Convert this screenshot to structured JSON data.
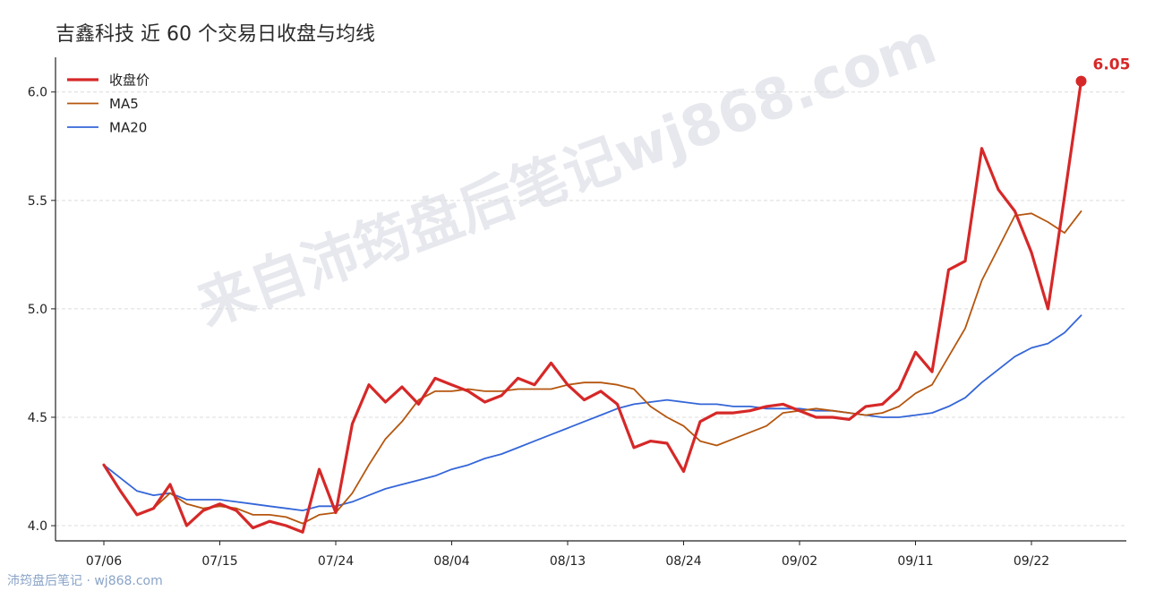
{
  "title": "吉鑫科技 近 60 个交易日收盘与均线",
  "watermark": "来自沛筠盘后笔记wj868.com",
  "footer": "沛筠盘后笔记 · wj868.com",
  "colors": {
    "close": "#d62828",
    "ma5": "#b5560f",
    "ma20": "#3466d8",
    "watermark": "#e6e8ee"
  },
  "chart_data": {
    "type": "line",
    "title": "吉鑫科技 近 60 个交易日收盘与均线",
    "xlabel": "",
    "ylabel": "",
    "ylim": [
      3.93,
      6.16
    ],
    "yticks": [
      4.0,
      4.5,
      5.0,
      5.5,
      6.0
    ],
    "ytick_labels": [
      "4.0",
      "4.5",
      "5.0",
      "5.5",
      "6.0"
    ],
    "xticks": [
      {
        "index": 0,
        "label": "07/06"
      },
      {
        "index": 7,
        "label": "07/15"
      },
      {
        "index": 14,
        "label": "07/24"
      },
      {
        "index": 21,
        "label": "08/04"
      },
      {
        "index": 28,
        "label": "08/13"
      },
      {
        "index": 35,
        "label": "08/24"
      },
      {
        "index": 42,
        "label": "09/02"
      },
      {
        "index": 49,
        "label": "09/11"
      },
      {
        "index": 56,
        "label": "09/22"
      }
    ],
    "grid": "horizontal",
    "legend_position": "top-left",
    "last_value_label": "6.05",
    "series": [
      {
        "name": "收盘价",
        "color": "#d62828",
        "width": 3.2,
        "values": [
          4.28,
          4.16,
          4.05,
          4.08,
          4.19,
          4.0,
          4.07,
          4.1,
          4.07,
          3.99,
          4.02,
          4.0,
          3.97,
          4.26,
          4.06,
          4.47,
          4.65,
          4.57,
          4.64,
          4.56,
          4.68,
          4.65,
          4.62,
          4.57,
          4.6,
          4.68,
          4.65,
          4.75,
          4.65,
          4.58,
          4.62,
          4.56,
          4.36,
          4.39,
          4.38,
          4.25,
          4.48,
          4.52,
          4.52,
          4.53,
          4.55,
          4.56,
          4.53,
          4.5,
          4.5,
          4.49,
          4.55,
          4.56,
          4.63,
          4.8,
          4.71,
          5.18,
          5.22,
          5.74,
          5.55,
          5.45,
          5.26,
          5.0,
          5.52,
          6.05
        ]
      },
      {
        "name": "MA5",
        "color": "#b5560f",
        "width": 1.8,
        "values": [
          4.28,
          4.16,
          4.05,
          4.08,
          4.15,
          4.1,
          4.08,
          4.09,
          4.08,
          4.05,
          4.05,
          4.04,
          4.01,
          4.05,
          4.06,
          4.15,
          4.28,
          4.4,
          4.48,
          4.58,
          4.62,
          4.62,
          4.63,
          4.62,
          4.62,
          4.63,
          4.63,
          4.63,
          4.65,
          4.66,
          4.66,
          4.65,
          4.63,
          4.55,
          4.5,
          4.46,
          4.39,
          4.37,
          4.4,
          4.43,
          4.46,
          4.52,
          4.53,
          4.54,
          4.53,
          4.52,
          4.51,
          4.52,
          4.55,
          4.61,
          4.65,
          4.78,
          4.91,
          5.13,
          5.28,
          5.43,
          5.44,
          5.4,
          5.35,
          5.45
        ]
      },
      {
        "name": "MA20",
        "color": "#3466d8",
        "width": 1.8,
        "values": [
          4.28,
          4.22,
          4.16,
          4.14,
          4.15,
          4.12,
          4.12,
          4.12,
          4.11,
          4.1,
          4.09,
          4.08,
          4.07,
          4.09,
          4.09,
          4.11,
          4.14,
          4.17,
          4.19,
          4.21,
          4.23,
          4.26,
          4.28,
          4.31,
          4.33,
          4.36,
          4.39,
          4.42,
          4.45,
          4.48,
          4.51,
          4.54,
          4.56,
          4.57,
          4.58,
          4.57,
          4.56,
          4.56,
          4.55,
          4.55,
          4.54,
          4.54,
          4.54,
          4.53,
          4.53,
          4.52,
          4.51,
          4.5,
          4.5,
          4.51,
          4.52,
          4.55,
          4.59,
          4.66,
          4.72,
          4.78,
          4.82,
          4.84,
          4.89,
          4.97
        ]
      }
    ]
  }
}
